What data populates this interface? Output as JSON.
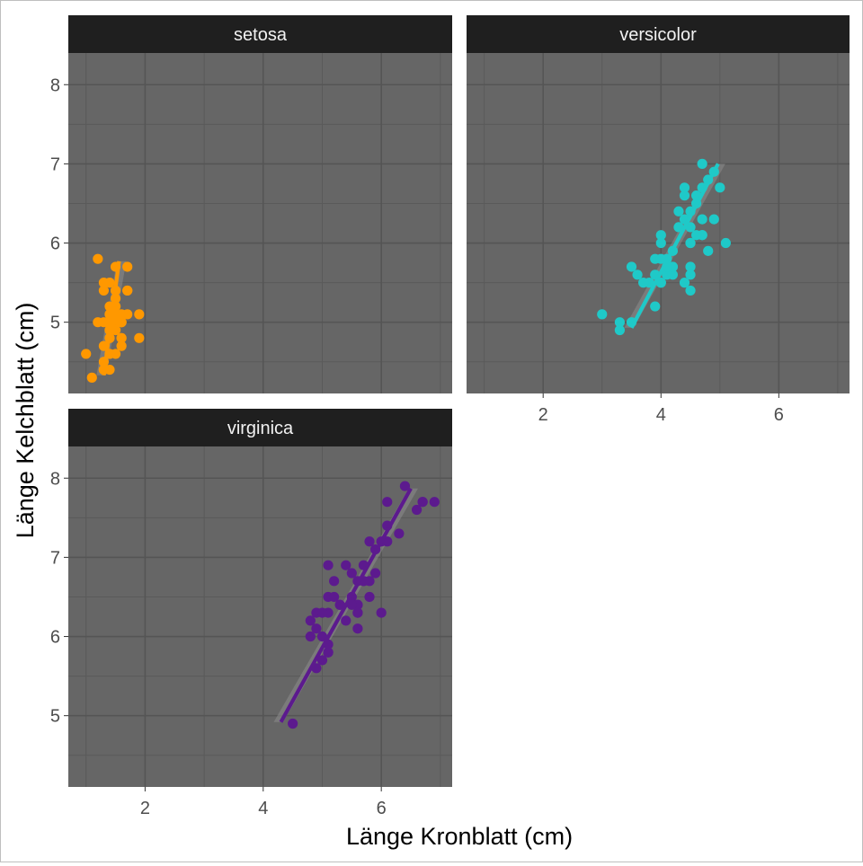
{
  "chart_data": {
    "type": "scatter",
    "xlabel": "Länge Kronblatt (cm)",
    "ylabel": "Länge Kelchblatt (cm)",
    "xlim": [
      0.7,
      7.2
    ],
    "ylim": [
      4.1,
      8.4
    ],
    "x_ticks": [
      2,
      4,
      6
    ],
    "y_ticks": [
      5,
      6,
      7,
      8
    ],
    "grid": true,
    "legend": "none",
    "facets": [
      {
        "strip": "setosa",
        "color": "#FF9800",
        "points": [
          [
            1.4,
            5.1
          ],
          [
            1.4,
            4.9
          ],
          [
            1.3,
            4.7
          ],
          [
            1.5,
            4.6
          ],
          [
            1.4,
            5.0
          ],
          [
            1.7,
            5.4
          ],
          [
            1.4,
            4.6
          ],
          [
            1.5,
            5.0
          ],
          [
            1.4,
            4.4
          ],
          [
            1.5,
            4.9
          ],
          [
            1.5,
            5.4
          ],
          [
            1.6,
            4.8
          ],
          [
            1.4,
            4.8
          ],
          [
            1.1,
            4.3
          ],
          [
            1.2,
            5.8
          ],
          [
            1.5,
            5.7
          ],
          [
            1.3,
            5.4
          ],
          [
            1.4,
            5.1
          ],
          [
            1.7,
            5.7
          ],
          [
            1.5,
            5.1
          ],
          [
            1.7,
            5.4
          ],
          [
            1.5,
            5.1
          ],
          [
            1.0,
            4.6
          ],
          [
            1.7,
            5.1
          ],
          [
            1.9,
            4.8
          ],
          [
            1.6,
            5.0
          ],
          [
            1.6,
            5.0
          ],
          [
            1.5,
            5.2
          ],
          [
            1.4,
            5.2
          ],
          [
            1.6,
            4.7
          ],
          [
            1.6,
            4.8
          ],
          [
            1.5,
            5.4
          ],
          [
            1.5,
            5.2
          ],
          [
            1.4,
            5.5
          ],
          [
            1.5,
            4.9
          ],
          [
            1.2,
            5.0
          ],
          [
            1.3,
            5.5
          ],
          [
            1.4,
            4.9
          ],
          [
            1.3,
            4.4
          ],
          [
            1.5,
            5.1
          ],
          [
            1.3,
            5.0
          ],
          [
            1.3,
            4.5
          ],
          [
            1.3,
            4.4
          ],
          [
            1.6,
            5.0
          ],
          [
            1.9,
            5.1
          ],
          [
            1.4,
            4.8
          ],
          [
            1.6,
            5.1
          ],
          [
            1.4,
            4.6
          ],
          [
            1.5,
            5.3
          ],
          [
            1.4,
            5.0
          ]
        ],
        "fit": {
          "x": [
            1.3,
            1.56
          ],
          "y": [
            4.33,
            5.77
          ]
        }
      },
      {
        "strip": "versicolor",
        "color": "#1FC9C8",
        "points": [
          [
            4.7,
            7.0
          ],
          [
            4.5,
            6.4
          ],
          [
            4.9,
            6.9
          ],
          [
            4.0,
            5.5
          ],
          [
            4.6,
            6.5
          ],
          [
            4.5,
            5.7
          ],
          [
            4.7,
            6.3
          ],
          [
            3.3,
            4.9
          ],
          [
            4.6,
            6.6
          ],
          [
            3.9,
            5.2
          ],
          [
            3.5,
            5.0
          ],
          [
            4.2,
            5.9
          ],
          [
            4.0,
            6.0
          ],
          [
            4.7,
            6.1
          ],
          [
            3.6,
            5.6
          ],
          [
            4.4,
            6.7
          ],
          [
            4.5,
            5.6
          ],
          [
            4.1,
            5.8
          ],
          [
            4.5,
            6.2
          ],
          [
            3.9,
            5.6
          ],
          [
            4.8,
            5.9
          ],
          [
            4.0,
            6.1
          ],
          [
            4.9,
            6.3
          ],
          [
            4.7,
            6.1
          ],
          [
            4.3,
            6.4
          ],
          [
            4.4,
            6.6
          ],
          [
            4.8,
            6.8
          ],
          [
            5.0,
            6.7
          ],
          [
            4.5,
            6.0
          ],
          [
            3.5,
            5.7
          ],
          [
            3.8,
            5.5
          ],
          [
            3.7,
            5.5
          ],
          [
            3.9,
            5.8
          ],
          [
            5.1,
            6.0
          ],
          [
            4.5,
            5.4
          ],
          [
            4.5,
            6.0
          ],
          [
            4.7,
            6.7
          ],
          [
            4.4,
            6.3
          ],
          [
            4.1,
            5.6
          ],
          [
            4.0,
            5.5
          ],
          [
            4.4,
            5.5
          ],
          [
            4.6,
            6.1
          ],
          [
            4.0,
            5.8
          ],
          [
            3.3,
            5.0
          ],
          [
            4.2,
            5.6
          ],
          [
            4.2,
            5.7
          ],
          [
            4.2,
            5.7
          ],
          [
            4.3,
            6.2
          ],
          [
            3.0,
            5.1
          ],
          [
            4.1,
            5.7
          ]
        ],
        "fit": {
          "x": [
            3.5,
            4.97
          ],
          "y": [
            4.93,
            7.0
          ]
        }
      },
      {
        "strip": "virginica",
        "color": "#5C1A8E",
        "points": [
          [
            6.0,
            6.3
          ],
          [
            5.1,
            5.8
          ],
          [
            5.9,
            7.1
          ],
          [
            5.6,
            6.3
          ],
          [
            5.8,
            6.5
          ],
          [
            6.6,
            7.6
          ],
          [
            4.5,
            4.9
          ],
          [
            6.3,
            7.3
          ],
          [
            5.8,
            6.7
          ],
          [
            6.1,
            7.2
          ],
          [
            5.1,
            6.5
          ],
          [
            5.3,
            6.4
          ],
          [
            5.5,
            6.8
          ],
          [
            5.0,
            5.7
          ],
          [
            5.1,
            5.8
          ],
          [
            5.3,
            6.4
          ],
          [
            5.5,
            6.5
          ],
          [
            6.7,
            7.7
          ],
          [
            6.9,
            7.7
          ],
          [
            5.0,
            6.0
          ],
          [
            5.7,
            6.9
          ],
          [
            4.9,
            5.6
          ],
          [
            6.7,
            7.7
          ],
          [
            4.9,
            6.3
          ],
          [
            5.7,
            6.7
          ],
          [
            6.0,
            7.2
          ],
          [
            4.8,
            6.2
          ],
          [
            4.9,
            6.1
          ],
          [
            5.6,
            6.4
          ],
          [
            5.8,
            7.2
          ],
          [
            6.1,
            7.4
          ],
          [
            6.4,
            7.9
          ],
          [
            5.6,
            6.4
          ],
          [
            5.1,
            6.3
          ],
          [
            5.6,
            6.1
          ],
          [
            6.1,
            7.7
          ],
          [
            5.6,
            6.3
          ],
          [
            5.5,
            6.4
          ],
          [
            4.8,
            6.0
          ],
          [
            5.4,
            6.9
          ],
          [
            5.6,
            6.7
          ],
          [
            5.1,
            6.9
          ],
          [
            5.1,
            5.8
          ],
          [
            5.9,
            6.8
          ],
          [
            5.7,
            6.7
          ],
          [
            5.2,
            6.7
          ],
          [
            5.0,
            6.3
          ],
          [
            5.2,
            6.5
          ],
          [
            5.4,
            6.2
          ],
          [
            5.1,
            5.9
          ]
        ],
        "fit": {
          "x": [
            4.3,
            6.5
          ],
          "y": [
            4.92,
            7.87
          ]
        }
      }
    ]
  }
}
